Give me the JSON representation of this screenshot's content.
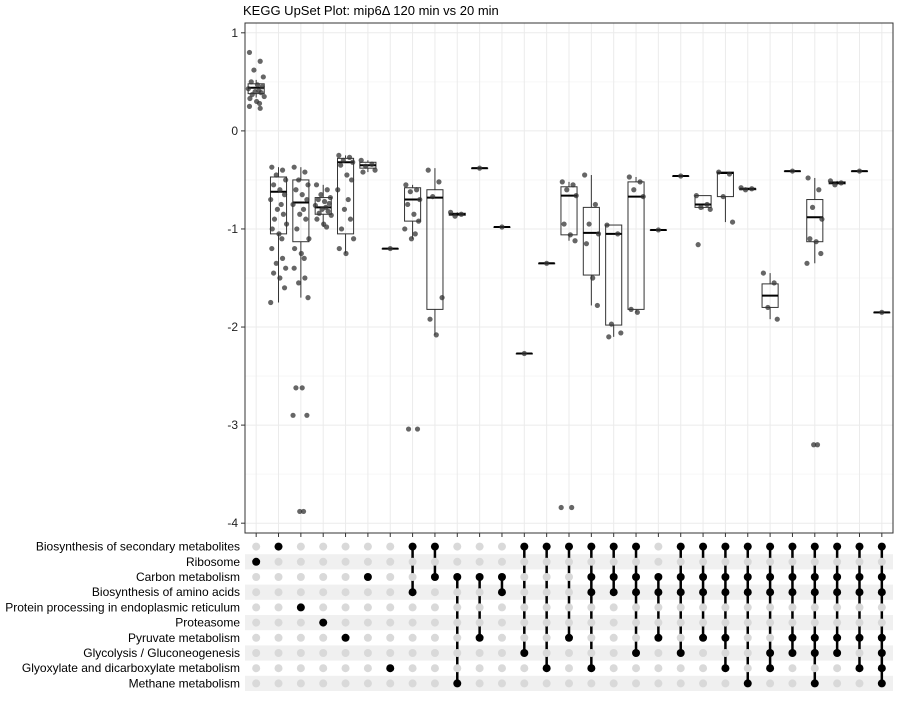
{
  "chart_data": {
    "type": "upset-boxplot",
    "title": "KEGG UpSet Plot: mip6Δ 120 min vs 20 min",
    "ylim": [
      -4.1,
      1.1
    ],
    "y_ticks": [
      1,
      0,
      -1,
      -2,
      -3,
      -4
    ],
    "y_tick_labels": [
      "1",
      "0",
      "-1",
      "-2",
      "-3",
      "-4"
    ],
    "grid": true,
    "sets": [
      "Biosynthesis of secondary metabolites",
      "Ribosome",
      "Carbon metabolism",
      "Biosynthesis of amino acids",
      "Protein processing in endoplasmic reticulum",
      "Proteasome",
      "Pyruvate metabolism",
      "Glycolysis / Gluconeogenesis",
      "Glyoxylate and dicarboxylate metabolism",
      "Methane metabolism"
    ],
    "intersections": [
      {
        "sets": [
          1
        ],
        "box": [
          0.34,
          0.38,
          0.44,
          0.48,
          0.52
        ],
        "points": [
          0.8,
          0.71,
          0.62,
          0.55,
          0.5,
          0.47,
          0.45,
          0.43,
          0.41,
          0.4,
          0.39,
          0.37,
          0.35,
          0.33,
          0.3,
          0.28,
          0.25,
          0.23
        ]
      },
      {
        "sets": [
          0
        ],
        "box": [
          -1.75,
          -1.05,
          -0.62,
          -0.47,
          -0.37
        ],
        "points": [
          -0.37,
          -0.4,
          -0.45,
          -0.5,
          -0.55,
          -0.6,
          -0.65,
          -0.7,
          -0.75,
          -0.8,
          -0.85,
          -0.9,
          -0.95,
          -1.0,
          -1.05,
          -1.1,
          -1.2,
          -1.3,
          -1.35,
          -1.4,
          -1.45,
          -1.5,
          -1.6,
          -1.75
        ]
      },
      {
        "sets": [
          4
        ],
        "box": [
          -1.7,
          -1.13,
          -0.73,
          -0.5,
          -0.37
        ],
        "points": [
          -0.37,
          -0.42,
          -0.5,
          -0.55,
          -0.6,
          -0.65,
          -0.7,
          -0.75,
          -0.8,
          -0.85,
          -0.9,
          -1.0,
          -1.1,
          -1.2,
          -1.25,
          -1.3,
          -1.4,
          -1.5,
          -1.55,
          -1.7,
          -2.62,
          -2.62,
          -2.9,
          -2.9,
          -3.88,
          -3.88
        ]
      },
      {
        "sets": [
          5
        ],
        "box": [
          -0.98,
          -0.85,
          -0.78,
          -0.68,
          -0.55
        ],
        "points": [
          -0.55,
          -0.6,
          -0.65,
          -0.68,
          -0.7,
          -0.72,
          -0.74,
          -0.76,
          -0.78,
          -0.8,
          -0.82,
          -0.84,
          -0.86,
          -0.9,
          -0.95,
          -0.98
        ]
      },
      {
        "sets": [
          6
        ],
        "box": [
          -1.25,
          -1.05,
          -0.32,
          -0.28,
          -0.25
        ],
        "points": [
          -0.25,
          -0.27,
          -0.3,
          -0.32,
          -0.35,
          -0.45,
          -0.5,
          -0.6,
          -0.7,
          -0.8,
          -0.9,
          -1.0,
          -1.1,
          -1.2,
          -1.25
        ]
      },
      {
        "sets": [
          2
        ],
        "box": [
          -0.42,
          -0.38,
          -0.35,
          -0.32,
          -0.3
        ],
        "points": [
          -0.3,
          -0.34,
          -0.36,
          -0.4,
          -0.42
        ]
      },
      {
        "sets": [
          8
        ],
        "box": [
          -1.2,
          -1.2,
          -1.2,
          -1.2,
          -1.2
        ],
        "points": [
          -1.2
        ]
      },
      {
        "sets": [
          0,
          3
        ],
        "box": [
          -1.1,
          -0.92,
          -0.7,
          -0.58,
          -0.55
        ],
        "points": [
          -0.55,
          -0.6,
          -0.62,
          -0.7,
          -0.75,
          -0.85,
          -0.92,
          -1.0,
          -1.05,
          -1.1,
          -3.04,
          -3.04
        ]
      },
      {
        "sets": [
          0,
          2
        ],
        "box": [
          -2.08,
          -1.82,
          -0.68,
          -0.6,
          -0.38
        ],
        "points": [
          -0.4,
          -0.52,
          -0.67,
          -1.7,
          -1.92,
          -2.08
        ]
      },
      {
        "sets": [
          2,
          9
        ],
        "box": [
          -0.87,
          -0.86,
          -0.85,
          -0.84,
          -0.83
        ],
        "points": [
          -0.83,
          -0.85,
          -0.87
        ]
      },
      {
        "sets": [
          2,
          6
        ],
        "box": [
          -0.38,
          -0.38,
          -0.38,
          -0.38,
          -0.38
        ],
        "points": [
          -0.38
        ]
      },
      {
        "sets": [
          2,
          3
        ],
        "box": [
          -0.98,
          -0.98,
          -0.98,
          -0.98,
          -0.98
        ],
        "points": [
          -0.98
        ]
      },
      {
        "sets": [
          0,
          7
        ],
        "box": [
          -2.27,
          -2.27,
          -2.27,
          -2.27,
          -2.27
        ],
        "points": [
          -2.27
        ]
      },
      {
        "sets": [
          0,
          8
        ],
        "box": [
          -1.35,
          -1.35,
          -1.35,
          -1.35,
          -1.35
        ],
        "points": [
          -1.35
        ]
      },
      {
        "sets": [
          0,
          6
        ],
        "box": [
          -1.12,
          -1.06,
          -0.66,
          -0.57,
          -0.52
        ],
        "points": [
          -0.52,
          -0.55,
          -0.6,
          -0.66,
          -0.95,
          -1.06,
          -1.12,
          -3.84,
          -3.84
        ]
      },
      {
        "sets": [
          0,
          2,
          3,
          8
        ],
        "box": [
          -1.78,
          -1.47,
          -1.04,
          -0.78,
          -0.45
        ],
        "points": [
          -0.45,
          -0.75,
          -0.95,
          -1.05,
          -1.15,
          -1.5,
          -1.78
        ]
      },
      {
        "sets": [
          0,
          2,
          3
        ],
        "box": [
          -2.1,
          -1.98,
          -1.05,
          -0.96,
          -0.96
        ],
        "points": [
          -0.96,
          -1.05,
          -1.97,
          -2.06,
          -2.1
        ]
      },
      {
        "sets": [
          0,
          2,
          3,
          7
        ],
        "box": [
          -1.85,
          -1.82,
          -0.67,
          -0.52,
          -0.47
        ],
        "points": [
          -0.47,
          -0.52,
          -0.6,
          -0.67,
          -1.82,
          -1.85
        ]
      },
      {
        "sets": [
          2,
          3,
          6
        ],
        "box": [
          -1.01,
          -1.01,
          -1.01,
          -1.01,
          -1.01
        ],
        "points": [
          -1.01
        ]
      },
      {
        "sets": [
          0,
          2,
          3,
          7
        ],
        "box": [
          -0.46,
          -0.46,
          -0.46,
          -0.46,
          -0.46
        ],
        "points": [
          -0.46
        ]
      },
      {
        "sets": [
          0,
          2,
          3,
          6
        ],
        "box": [
          -0.8,
          -0.78,
          -0.75,
          -0.66,
          -0.66
        ],
        "points": [
          -0.66,
          -0.75,
          -0.78,
          -0.8,
          -1.16
        ]
      },
      {
        "sets": [
          0,
          2,
          3,
          6,
          8
        ],
        "box": [
          -0.93,
          -0.67,
          -0.43,
          -0.42,
          -0.42
        ],
        "points": [
          -0.42,
          -0.44,
          -0.67,
          -0.93
        ]
      },
      {
        "sets": [
          0,
          2,
          3,
          9
        ],
        "box": [
          -0.6,
          -0.6,
          -0.59,
          -0.59,
          -0.58
        ],
        "points": [
          -0.58,
          -0.59,
          -0.6
        ]
      },
      {
        "sets": [
          0,
          2,
          3,
          7,
          8
        ],
        "box": [
          -1.92,
          -1.8,
          -1.68,
          -1.56,
          -1.45
        ],
        "points": [
          -1.45,
          -1.55,
          -1.8,
          -1.92
        ]
      },
      {
        "sets": [
          0,
          2,
          3,
          6,
          7
        ],
        "box": [
          -0.41,
          -0.41,
          -0.41,
          -0.41,
          -0.41
        ],
        "points": [
          -0.41
        ]
      },
      {
        "sets": [
          0,
          2,
          3,
          6,
          7,
          9
        ],
        "box": [
          -1.35,
          -1.13,
          -0.88,
          -0.7,
          -0.48
        ],
        "points": [
          -0.48,
          -0.6,
          -0.78,
          -0.9,
          -1.1,
          -1.13,
          -1.25,
          -1.35,
          -3.2,
          -3.2
        ]
      },
      {
        "sets": [
          0,
          2,
          3,
          6,
          7
        ],
        "box": [
          -0.55,
          -0.54,
          -0.53,
          -0.52,
          -0.51
        ],
        "points": [
          -0.51,
          -0.53,
          -0.55
        ]
      },
      {
        "sets": [
          0,
          2,
          3,
          6,
          8
        ],
        "box": [
          -0.41,
          -0.41,
          -0.41,
          -0.41,
          -0.41
        ],
        "points": [
          -0.41
        ]
      },
      {
        "sets": [
          0,
          2,
          3,
          6,
          7,
          8,
          9
        ],
        "box": [
          -1.85,
          -1.85,
          -1.85,
          -1.85,
          -1.85
        ],
        "points": [
          -1.85
        ]
      }
    ]
  },
  "colors": {
    "dot_on": "#000000",
    "dot_off": "#d9d9d9",
    "point": "#333333",
    "grid": "#ebebeb",
    "stripe": "#f0f0f0",
    "panel_border": "#333333"
  }
}
